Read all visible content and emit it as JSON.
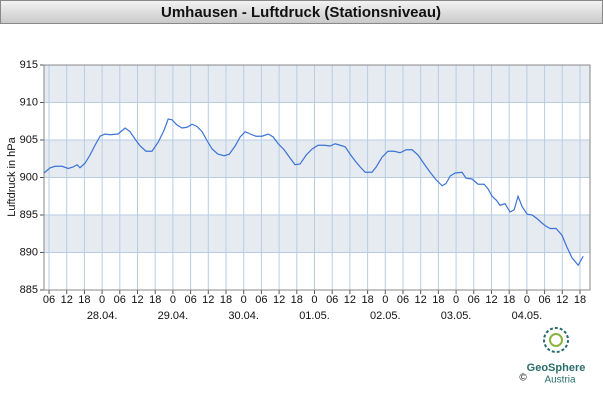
{
  "chart_data": {
    "type": "line",
    "title": "Umhausen - Luftdruck (Stationsniveau)",
    "y_label": "Luftdruck in hPa",
    "x": [
      4.3,
      6.4,
      8.1,
      10.4,
      12.5,
      14.2,
      15.5,
      16.5,
      18.2,
      19.9,
      21.6,
      23.3,
      25.0,
      26.7,
      29.4,
      31.8,
      33.5,
      35.2,
      36.9,
      38.9,
      40.9,
      43.0,
      45.0,
      46.4,
      47.7,
      49.4,
      51.1,
      52.8,
      54.5,
      56.2,
      57.9,
      59.6,
      61.3,
      63.3,
      65.4,
      67.1,
      69.1,
      70.8,
      72.5,
      74.2,
      76.2,
      78.2,
      80.3,
      82.0,
      83.7,
      85.7,
      87.7,
      89.4,
      91.1,
      93.2,
      95.2,
      97.2,
      99.3,
      101.3,
      103.0,
      104.7,
      106.4,
      108.1,
      109.8,
      111.5,
      113.2,
      115.5,
      116.9,
      118.9,
      120.9,
      123.0,
      125.0,
      127.1,
      129.1,
      131.1,
      133.2,
      135.2,
      137.2,
      139.3,
      140.6,
      142.0,
      143.7,
      146.0,
      147.4,
      149.4,
      151.5,
      153.5,
      154.8,
      156.2,
      157.6,
      158.9,
      160.6,
      162.3,
      163.7,
      165.0,
      166.4,
      168.1,
      169.8,
      171.5,
      173.2,
      174.5,
      175.9,
      177.9,
      179.9,
      181.6,
      183.3,
      185.4,
      187.1
    ],
    "series": [
      {
        "name": "Luftdruck",
        "color": "#3b73d6",
        "values": [
          900.6,
          901.3,
          901.5,
          901.5,
          901.2,
          901.4,
          901.7,
          901.3,
          901.9,
          903.0,
          904.3,
          905.5,
          905.8,
          905.7,
          905.8,
          906.6,
          906.1,
          905.1,
          904.2,
          903.5,
          903.5,
          904.7,
          906.3,
          907.8,
          907.7,
          907.0,
          906.6,
          906.7,
          907.1,
          906.8,
          906.1,
          904.9,
          903.8,
          903.1,
          902.9,
          903.1,
          904.2,
          905.4,
          906.1,
          905.8,
          905.5,
          905.5,
          905.8,
          905.4,
          904.5,
          903.7,
          902.6,
          901.7,
          901.8,
          903.0,
          903.8,
          904.3,
          904.3,
          904.2,
          904.5,
          904.3,
          904.1,
          903.1,
          902.2,
          901.4,
          900.7,
          900.7,
          901.4,
          902.7,
          903.5,
          903.5,
          903.3,
          903.7,
          903.7,
          903.0,
          901.8,
          900.7,
          899.7,
          898.9,
          899.2,
          900.2,
          900.6,
          900.7,
          899.9,
          899.8,
          899.1,
          899.1,
          898.5,
          897.5,
          897.0,
          896.3,
          896.5,
          895.4,
          895.7,
          897.5,
          896.1,
          895.1,
          895.0,
          894.5,
          893.9,
          893.5,
          893.2,
          893.2,
          892.3,
          890.7,
          889.3,
          888.3,
          889.5
        ]
      }
    ],
    "xlim": [
      4.3,
      189.4
    ],
    "xticks": [
      {
        "value": 6,
        "label": "06"
      },
      {
        "value": 12,
        "label": "12"
      },
      {
        "value": 18,
        "label": "18"
      },
      {
        "value": 24,
        "label": "0"
      },
      {
        "value": 30,
        "label": "06"
      },
      {
        "value": 36,
        "label": "12"
      },
      {
        "value": 42,
        "label": "18"
      },
      {
        "value": 48,
        "label": "0"
      },
      {
        "value": 54,
        "label": "06"
      },
      {
        "value": 60,
        "label": "12"
      },
      {
        "value": 66,
        "label": "18"
      },
      {
        "value": 72,
        "label": "0"
      },
      {
        "value": 78,
        "label": "06"
      },
      {
        "value": 84,
        "label": "12"
      },
      {
        "value": 90,
        "label": "18"
      },
      {
        "value": 96,
        "label": "0"
      },
      {
        "value": 102,
        "label": "06"
      },
      {
        "value": 108,
        "label": "12"
      },
      {
        "value": 114,
        "label": "18"
      },
      {
        "value": 120,
        "label": "0"
      },
      {
        "value": 126,
        "label": "06"
      },
      {
        "value": 132,
        "label": "12"
      },
      {
        "value": 138,
        "label": "18"
      },
      {
        "value": 144,
        "label": "0"
      },
      {
        "value": 150,
        "label": "06"
      },
      {
        "value": 156,
        "label": "12"
      },
      {
        "value": 162,
        "label": "18"
      },
      {
        "value": 168,
        "label": "0"
      },
      {
        "value": 174,
        "label": "06"
      },
      {
        "value": 180,
        "label": "12"
      },
      {
        "value": 186,
        "label": "18"
      }
    ],
    "date_labels": [
      {
        "value": 24,
        "label": "28.04."
      },
      {
        "value": 48,
        "label": "29.04."
      },
      {
        "value": 72,
        "label": "30.04."
      },
      {
        "value": 96,
        "label": "01.05."
      },
      {
        "value": 120,
        "label": "02.05."
      },
      {
        "value": 144,
        "label": "03.05."
      },
      {
        "value": 168,
        "label": "04.05."
      }
    ],
    "ylim": [
      885,
      915
    ],
    "yticks": [
      885,
      890,
      895,
      900,
      905,
      910,
      915
    ],
    "grid": true
  },
  "logo": {
    "name": "GeoSphere",
    "sub": "Austria",
    "copyright": "©"
  }
}
